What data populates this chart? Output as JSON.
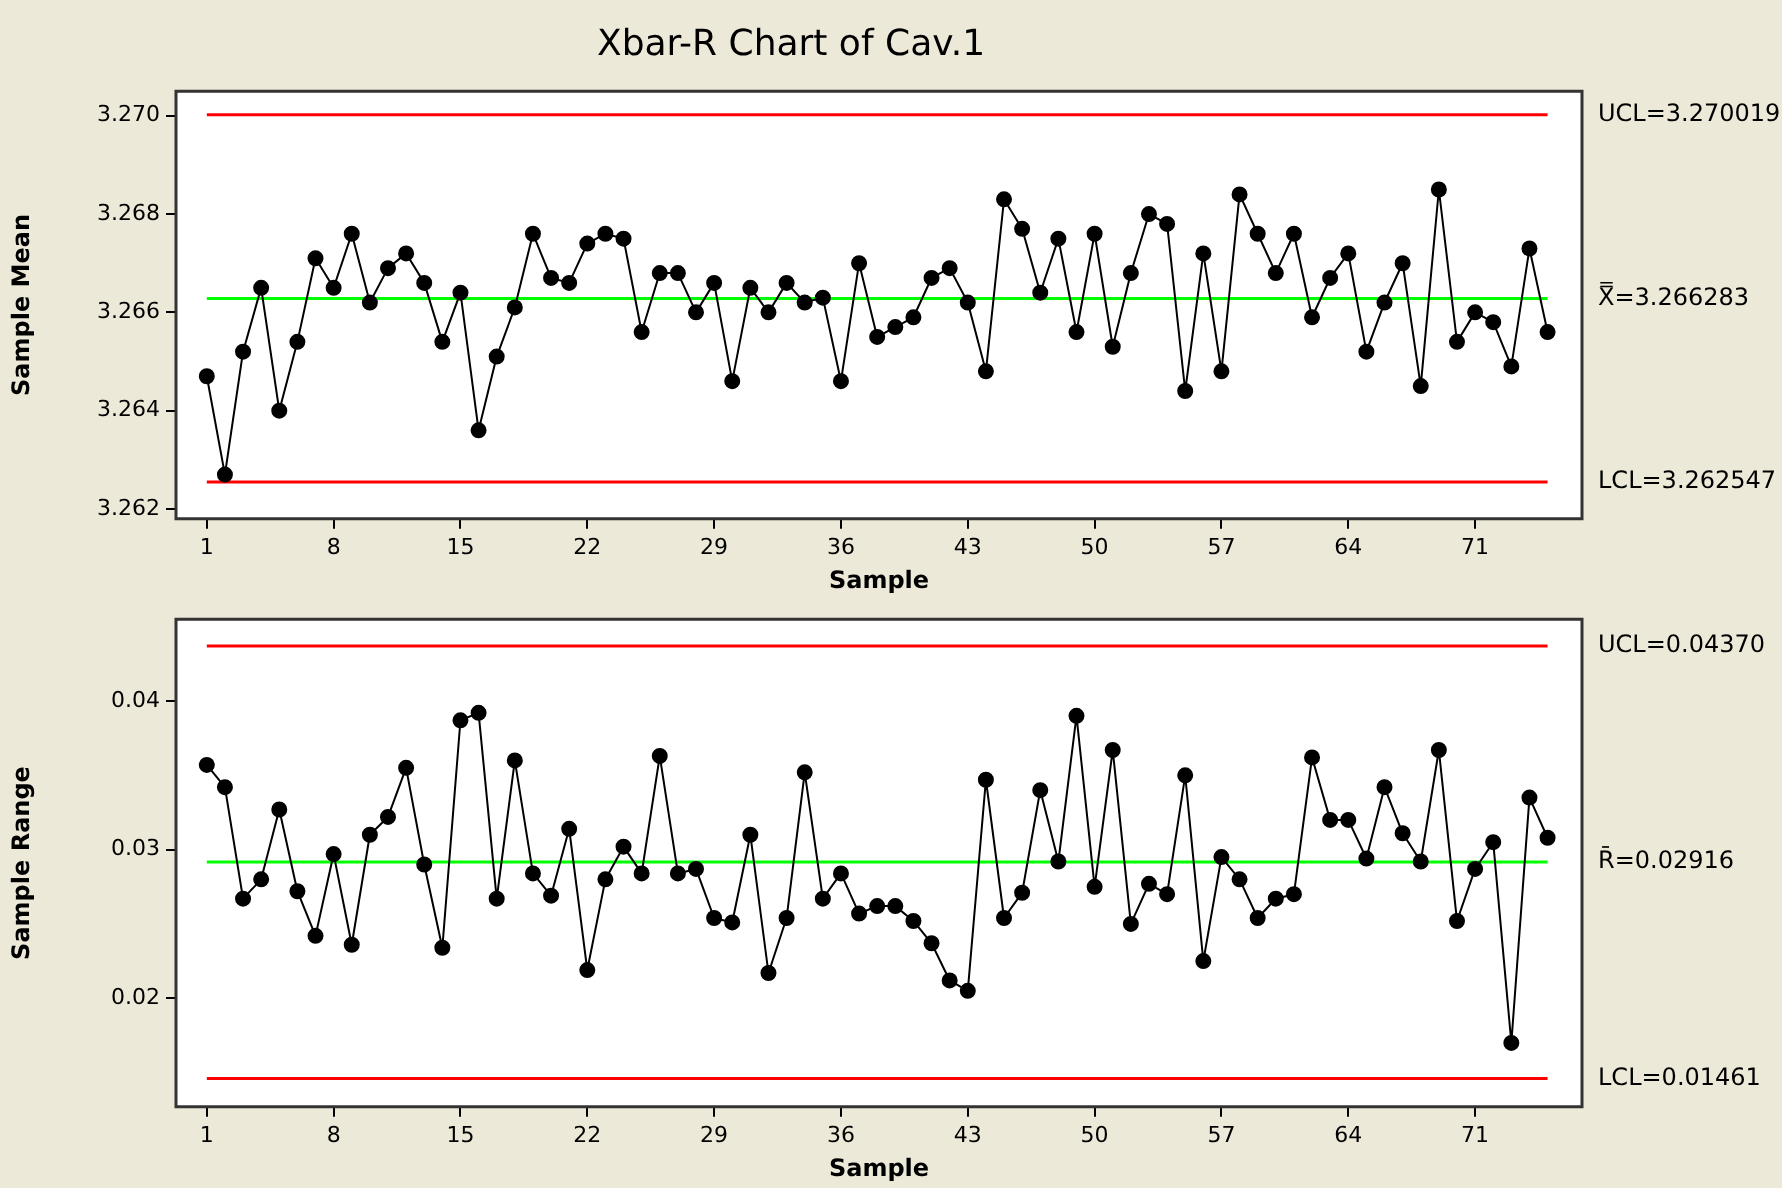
{
  "chart_data": [
    {
      "type": "line",
      "title": "Xbar-R Chart of Cav.1",
      "xlabel": "Sample",
      "ylabel": "Sample Mean",
      "x": [
        1,
        2,
        3,
        4,
        5,
        6,
        7,
        8,
        9,
        10,
        11,
        12,
        13,
        14,
        15,
        16,
        17,
        18,
        19,
        20,
        21,
        22,
        23,
        24,
        25,
        26,
        27,
        28,
        29,
        30,
        31,
        32,
        33,
        34,
        35,
        36,
        37,
        38,
        39,
        40,
        41,
        42,
        43,
        44,
        45,
        46,
        47,
        48,
        49,
        50,
        51,
        52,
        53,
        54,
        55,
        56,
        57,
        58,
        59,
        60,
        61,
        62,
        63,
        64,
        65,
        66,
        67,
        68,
        69,
        70,
        71,
        72,
        73,
        74,
        75
      ],
      "series": [
        {
          "color": "#000000",
          "values": [
            3.2647,
            3.2627,
            3.2652,
            3.2665,
            3.264,
            3.2654,
            3.2671,
            3.2665,
            3.2676,
            3.2662,
            3.2669,
            3.2672,
            3.2666,
            3.2654,
            3.2664,
            3.2636,
            3.2651,
            3.2661,
            3.2676,
            3.2667,
            3.2666,
            3.2674,
            3.2676,
            3.2675,
            3.2656,
            3.2668,
            3.2668,
            3.266,
            3.2666,
            3.2646,
            3.2665,
            3.266,
            3.2666,
            3.2662,
            3.2663,
            3.2646,
            3.267,
            3.2655,
            3.2657,
            3.2659,
            3.2667,
            3.2669,
            3.2662,
            3.2648,
            3.2683,
            3.2677,
            3.2664,
            3.2675,
            3.2656,
            3.2676,
            3.2653,
            3.2668,
            3.268,
            3.2678,
            3.2644,
            3.2672,
            3.2648,
            3.2684,
            3.2676,
            3.2668,
            3.2676,
            3.2659,
            3.2667,
            3.2672,
            3.2652,
            3.2662,
            3.267,
            3.2645,
            3.2685,
            3.2654,
            3.266,
            3.2658,
            3.2649,
            3.2673,
            3.2656
          ]
        }
      ],
      "xlim": [
        -0.7,
        76.9
      ],
      "xticks": [
        1,
        8,
        15,
        22,
        29,
        36,
        43,
        50,
        57,
        64,
        71
      ],
      "ylim": [
        3.2618,
        3.2705
      ],
      "yticks": [
        {
          "value": 3.262,
          "label": "3.262"
        },
        {
          "value": 3.264,
          "label": "3.264"
        },
        {
          "value": 3.266,
          "label": "3.266"
        },
        {
          "value": 3.268,
          "label": "3.268"
        },
        {
          "value": 3.27,
          "label": "3.270"
        }
      ],
      "ref_lines": [
        {
          "axis": "y",
          "value": 3.270019,
          "label": "UCL=3.270019",
          "color": "#ff0000"
        },
        {
          "axis": "y",
          "value": 3.266283,
          "label": "X̿=3.266283",
          "color": "#00ff00"
        },
        {
          "axis": "y",
          "value": 3.262547,
          "label": "LCL=3.262547",
          "color": "#ff0000"
        }
      ],
      "marker": "circle",
      "grid": false,
      "legend": false
    },
    {
      "type": "line",
      "xlabel": "Sample",
      "ylabel": "Sample Range",
      "x": [
        1,
        2,
        3,
        4,
        5,
        6,
        7,
        8,
        9,
        10,
        11,
        12,
        13,
        14,
        15,
        16,
        17,
        18,
        19,
        20,
        21,
        22,
        23,
        24,
        25,
        26,
        27,
        28,
        29,
        30,
        31,
        32,
        33,
        34,
        35,
        36,
        37,
        38,
        39,
        40,
        41,
        42,
        43,
        44,
        45,
        46,
        47,
        48,
        49,
        50,
        51,
        52,
        53,
        54,
        55,
        56,
        57,
        58,
        59,
        60,
        61,
        62,
        63,
        64,
        65,
        66,
        67,
        68,
        69,
        70,
        71,
        72,
        73,
        74,
        75
      ],
      "series": [
        {
          "color": "#000000",
          "values": [
            0.0357,
            0.0342,
            0.0267,
            0.028,
            0.0327,
            0.0272,
            0.0242,
            0.0297,
            0.0236,
            0.031,
            0.0322,
            0.0355,
            0.029,
            0.0234,
            0.0387,
            0.0392,
            0.0267,
            0.036,
            0.0284,
            0.0269,
            0.0314,
            0.0219,
            0.028,
            0.0302,
            0.0284,
            0.0363,
            0.0284,
            0.0287,
            0.0254,
            0.0251,
            0.031,
            0.0217,
            0.0254,
            0.0352,
            0.0267,
            0.0284,
            0.0257,
            0.0262,
            0.0262,
            0.0252,
            0.0237,
            0.0212,
            0.0205,
            0.0347,
            0.0254,
            0.0271,
            0.034,
            0.0292,
            0.039,
            0.0275,
            0.0367,
            0.025,
            0.0277,
            0.027,
            0.035,
            0.0225,
            0.0295,
            0.028,
            0.0254,
            0.0267,
            0.027,
            0.0362,
            0.032,
            0.032,
            0.0294,
            0.0342,
            0.0311,
            0.0292,
            0.0367,
            0.0252,
            0.0287,
            0.0305,
            0.017,
            0.0335,
            0.0308
          ]
        }
      ],
      "xlim": [
        -0.7,
        76.9
      ],
      "xticks": [
        1,
        8,
        15,
        22,
        29,
        36,
        43,
        50,
        57,
        64,
        71
      ],
      "ylim": [
        0.0127,
        0.0455
      ],
      "yticks": [
        0.02,
        0.03,
        0.04
      ],
      "ref_lines": [
        {
          "axis": "y",
          "value": 0.0437,
          "label": "UCL=0.04370",
          "color": "#ff0000"
        },
        {
          "axis": "y",
          "value": 0.02916,
          "label": "R̄=0.02916",
          "color": "#00ff00"
        },
        {
          "axis": "y",
          "value": 0.01461,
          "label": "LCL=0.01461",
          "color": "#ff0000"
        }
      ],
      "marker": "circle",
      "grid": false,
      "legend": false
    }
  ]
}
